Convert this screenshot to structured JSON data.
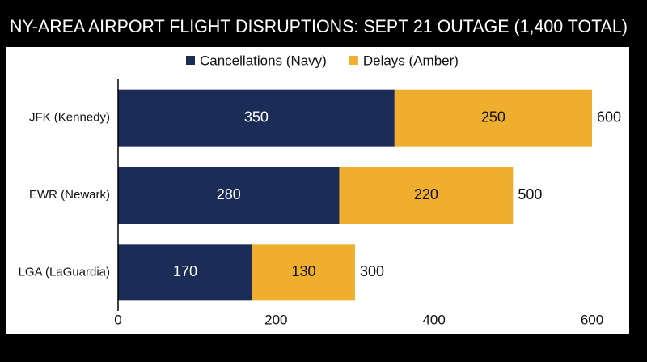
{
  "chart_data": {
    "type": "stacked-barh",
    "title": "NY-AREA AIRPORT FLIGHT DISRUPTIONS: SEPT 21 OUTAGE (1,400 TOTAL)",
    "categories": [
      "JFK (Kennedy)",
      "EWR (Newark)",
      "LGA (LaGuardia)"
    ],
    "series": [
      {
        "name": "Cancellations (Navy)",
        "color": "#1b2d57",
        "values": [
          350,
          280,
          170
        ]
      },
      {
        "name": "Delays (Amber)",
        "color": "#f0ae2e",
        "values": [
          250,
          220,
          130
        ]
      }
    ],
    "totals": [
      600,
      500,
      300
    ],
    "xlim": [
      0,
      615
    ],
    "xticks": [
      0,
      200,
      400,
      600
    ],
    "grid": false
  }
}
